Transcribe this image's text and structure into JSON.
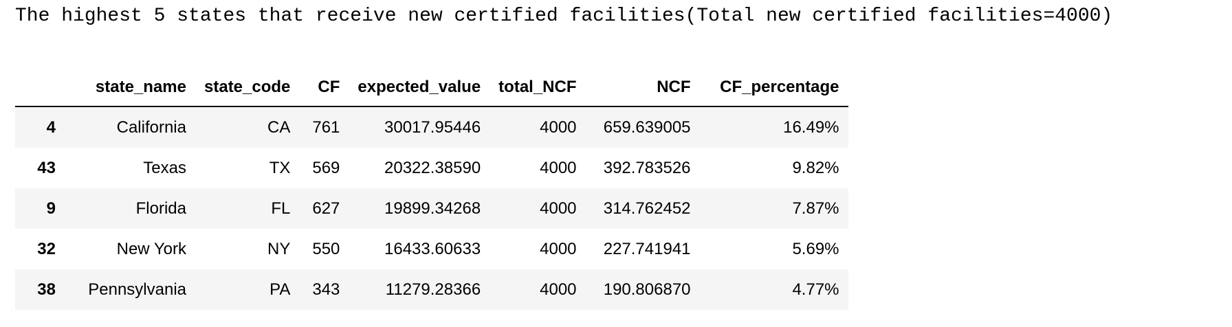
{
  "output": {
    "text": "The highest 5 states that receive new certified facilities(Total new certified facilities=4000)"
  },
  "table": {
    "columns": [
      "",
      "state_name",
      "state_code",
      "CF",
      "expected_value",
      "total_NCF",
      "NCF",
      "CF_percentage"
    ],
    "rows": [
      {
        "index": "4",
        "state_name": "California",
        "state_code": "CA",
        "CF": "761",
        "expected_value": "30017.95446",
        "total_NCF": "4000",
        "NCF": "659.639005",
        "CF_percentage": "16.49%"
      },
      {
        "index": "43",
        "state_name": "Texas",
        "state_code": "TX",
        "CF": "569",
        "expected_value": "20322.38590",
        "total_NCF": "4000",
        "NCF": "392.783526",
        "CF_percentage": "9.82%"
      },
      {
        "index": "9",
        "state_name": "Florida",
        "state_code": "FL",
        "CF": "627",
        "expected_value": "19899.34268",
        "total_NCF": "4000",
        "NCF": "314.762452",
        "CF_percentage": "7.87%"
      },
      {
        "index": "32",
        "state_name": "New York",
        "state_code": "NY",
        "CF": "550",
        "expected_value": "16433.60633",
        "total_NCF": "4000",
        "NCF": "227.741941",
        "CF_percentage": "5.69%"
      },
      {
        "index": "38",
        "state_name": "Pennsylvania",
        "state_code": "PA",
        "CF": "343",
        "expected_value": "11279.28366",
        "total_NCF": "4000",
        "NCF": "190.806870",
        "CF_percentage": "4.77%"
      }
    ]
  }
}
